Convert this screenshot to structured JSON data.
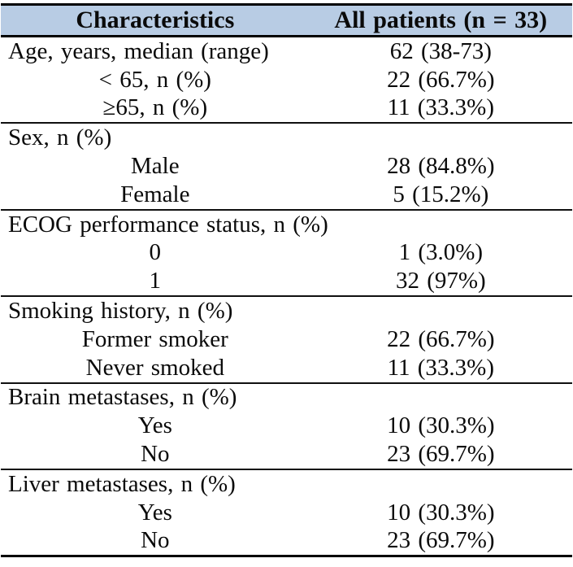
{
  "table": {
    "title_semantic": "patient-baseline-characteristics-table",
    "columns": [
      {
        "label": "Characteristics"
      },
      {
        "label": "All patients (n = 33)"
      }
    ],
    "colors": {
      "header_background": "#b8cce4",
      "border": "#000000",
      "text": "#0a0a0a"
    },
    "rows": [
      {
        "label": "Age, years, median (range)",
        "value": "62 (38-73)",
        "indent": false,
        "section_end": false
      },
      {
        "label": "< 65, n (%)",
        "value": "22 (66.7%)",
        "indent": true,
        "section_end": false
      },
      {
        "label": "≥65, n (%)",
        "value": "11 (33.3%)",
        "indent": true,
        "section_end": true
      },
      {
        "label": "Sex, n (%)",
        "value": "",
        "indent": false,
        "section_end": false
      },
      {
        "label": "Male",
        "value": "28 (84.8%)",
        "indent": true,
        "section_end": false
      },
      {
        "label": "Female",
        "value": "5 (15.2%)",
        "indent": true,
        "section_end": true
      },
      {
        "label": "ECOG performance status, n (%)",
        "value": "",
        "indent": false,
        "section_end": false
      },
      {
        "label": "0",
        "value": "1 (3.0%)",
        "indent": true,
        "section_end": false
      },
      {
        "label": "1",
        "value": "32 (97%)",
        "indent": true,
        "section_end": true
      },
      {
        "label": "Smoking history, n (%)",
        "value": "",
        "indent": false,
        "section_end": false
      },
      {
        "label": "Former smoker",
        "value": "22 (66.7%)",
        "indent": true,
        "section_end": false
      },
      {
        "label": "Never smoked",
        "value": "11 (33.3%)",
        "indent": true,
        "section_end": true
      },
      {
        "label": "Brain metastases, n (%)",
        "value": "",
        "indent": false,
        "section_end": false
      },
      {
        "label": "Yes",
        "value": "10 (30.3%)",
        "indent": true,
        "section_end": false
      },
      {
        "label": "No",
        "value": "23 (69.7%)",
        "indent": true,
        "section_end": true
      },
      {
        "label": "Liver metastases, n (%)",
        "value": "",
        "indent": false,
        "section_end": false
      },
      {
        "label": "Yes",
        "value": "10 (30.3%)",
        "indent": true,
        "section_end": false
      },
      {
        "label": "No",
        "value": "23 (69.7%)",
        "indent": true,
        "section_end": false
      }
    ]
  }
}
